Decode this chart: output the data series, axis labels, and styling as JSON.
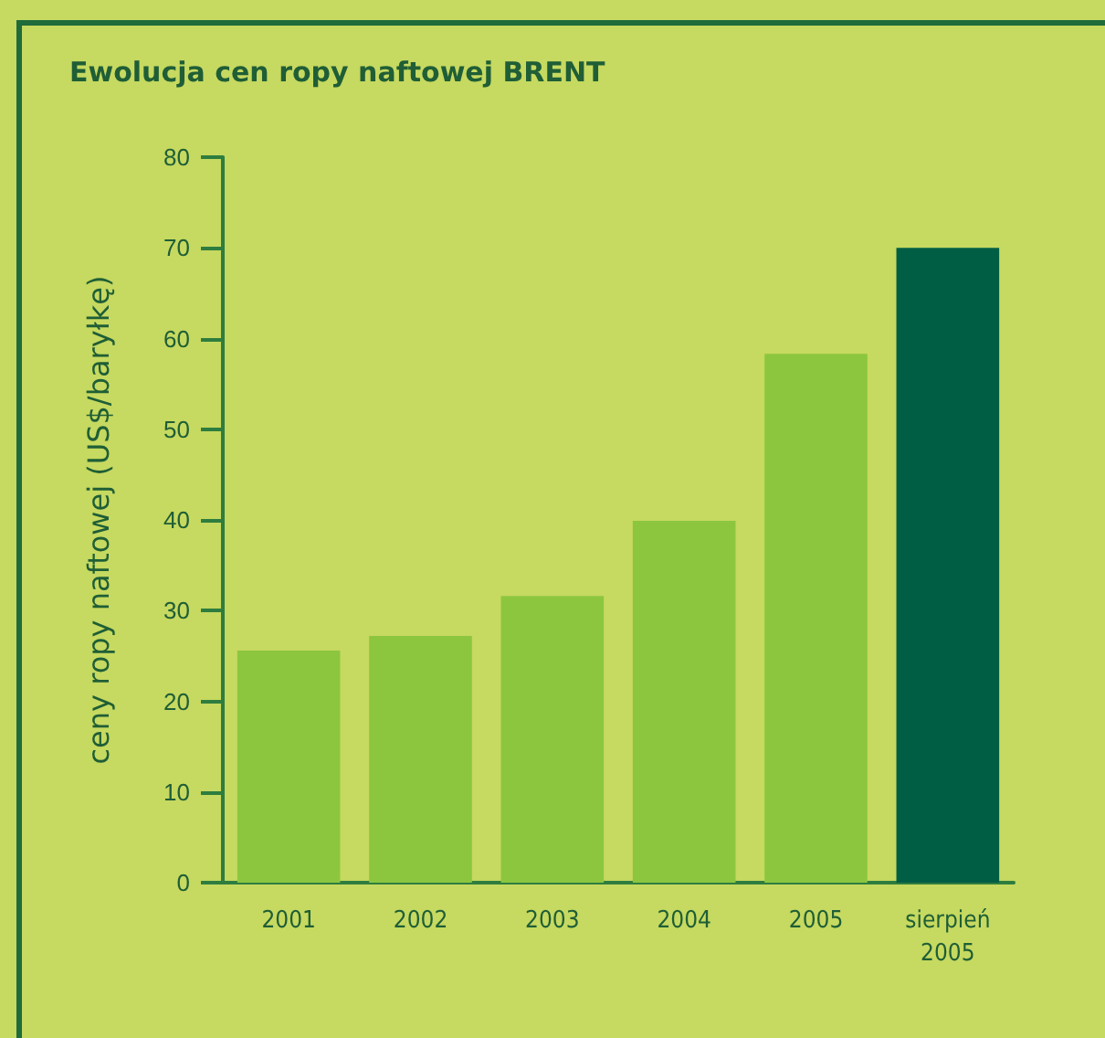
{
  "chart_data": {
    "type": "bar",
    "title": "Ewolucja cen ropy naftowej BRENT",
    "ylabel": "ceny ropy naftowej (US$/baryłkę)",
    "categories": [
      "2001",
      "2002",
      "2003",
      "2004",
      "2005",
      "sierpień\n2005"
    ],
    "values": [
      25.6,
      27.2,
      31.6,
      39.9,
      58.3,
      70
    ],
    "colors": [
      "#8cc63f",
      "#8cc63f",
      "#8cc63f",
      "#8cc63f",
      "#8cc63f",
      "#005e44"
    ],
    "ylim": [
      0,
      80
    ],
    "yticks": [
      0,
      10,
      20,
      30,
      40,
      50,
      60,
      70,
      80
    ],
    "grid": false
  }
}
